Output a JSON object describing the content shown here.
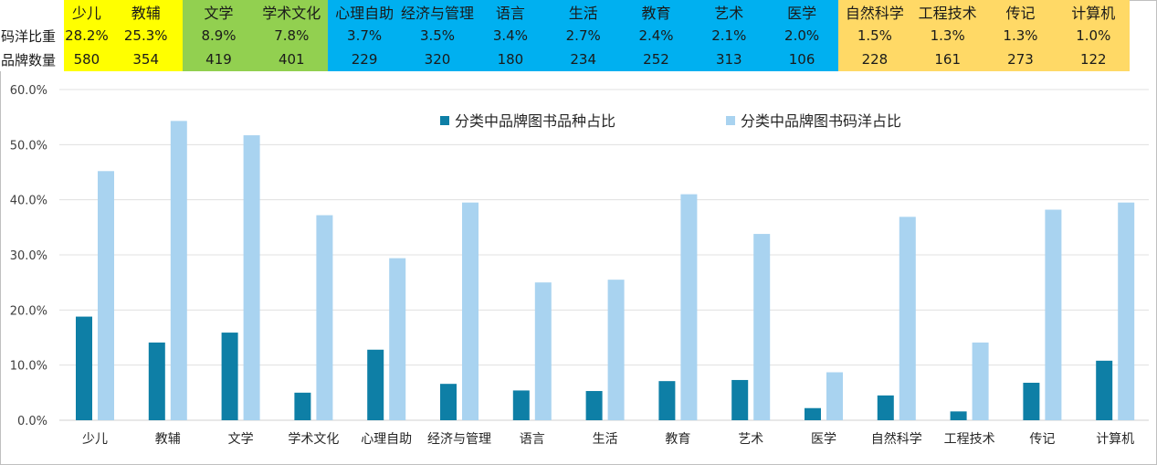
{
  "header_table": {
    "row_labels": [
      "码洋比重",
      "品牌数量"
    ],
    "columns": [
      {
        "category": "少儿",
        "share": "28.2%",
        "brands": "580",
        "color": "#ffff00"
      },
      {
        "category": "教辅",
        "share": "25.3%",
        "brands": "354",
        "color": "#ffff00"
      },
      {
        "category": "文学",
        "share": "8.9%",
        "brands": "419",
        "color": "#92d050"
      },
      {
        "category": "学术文化",
        "share": "7.8%",
        "brands": "401",
        "color": "#92d050"
      },
      {
        "category": "心理自助",
        "share": "3.7%",
        "brands": "229",
        "color": "#00b0f0"
      },
      {
        "category": "经济与管理",
        "share": "3.5%",
        "brands": "320",
        "color": "#00b0f0"
      },
      {
        "category": "语言",
        "share": "3.4%",
        "brands": "180",
        "color": "#00b0f0"
      },
      {
        "category": "生活",
        "share": "2.7%",
        "brands": "234",
        "color": "#00b0f0"
      },
      {
        "category": "教育",
        "share": "2.4%",
        "brands": "252",
        "color": "#00b0f0"
      },
      {
        "category": "艺术",
        "share": "2.1%",
        "brands": "313",
        "color": "#00b0f0"
      },
      {
        "category": "医学",
        "share": "2.0%",
        "brands": "106",
        "color": "#00b0f0"
      },
      {
        "category": "自然科学",
        "share": "1.5%",
        "brands": "228",
        "color": "#ffd966"
      },
      {
        "category": "工程技术",
        "share": "1.3%",
        "brands": "161",
        "color": "#ffd966"
      },
      {
        "category": "传记",
        "share": "1.3%",
        "brands": "273",
        "color": "#ffd966"
      },
      {
        "category": "计算机",
        "share": "1.0%",
        "brands": "122",
        "color": "#ffd966"
      }
    ]
  },
  "chart_data": {
    "type": "bar",
    "categories": [
      "少儿",
      "教辅",
      "文学",
      "学术文化",
      "心理自助",
      "经济与管理",
      "语言",
      "生活",
      "教育",
      "艺术",
      "医学",
      "自然科学",
      "工程技术",
      "传记",
      "计算机"
    ],
    "series": [
      {
        "name": "分类中品牌图书品种占比",
        "color": "#0e7fa6",
        "values": [
          18.8,
          14.1,
          15.9,
          5.0,
          12.8,
          6.6,
          5.4,
          5.3,
          7.1,
          7.3,
          2.2,
          4.5,
          1.6,
          6.8,
          10.8
        ]
      },
      {
        "name": "分类中品牌图书码洋占比",
        "color": "#a9d3f0",
        "values": [
          45.2,
          54.3,
          51.7,
          37.2,
          29.4,
          39.5,
          25.0,
          25.5,
          41.0,
          33.8,
          8.7,
          36.9,
          14.1,
          38.2,
          39.5
        ]
      }
    ],
    "ylim": [
      0,
      60
    ],
    "yticks": [
      0,
      10,
      20,
      30,
      40,
      50,
      60
    ],
    "ytick_labels": [
      "0.0%",
      "10.0%",
      "20.0%",
      "30.0%",
      "40.0%",
      "50.0%",
      "60.0%"
    ],
    "grid": true,
    "legend_position": "top"
  }
}
